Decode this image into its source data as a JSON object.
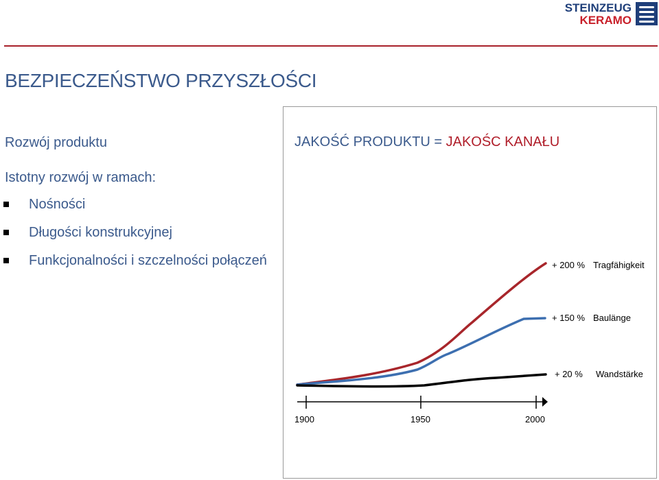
{
  "brand": {
    "line1": "STEINZEUG",
    "line2": "KERAMO"
  },
  "colors": {
    "title_blue": "#3b5a8c",
    "brand_red": "#b01e2a",
    "curve_red": "#a8262b",
    "curve_blue": "#3d6fb0",
    "curve_black": "#000000"
  },
  "page": {
    "title": "BEZPIECZEŃSTWO PRZYSZŁOŚCI",
    "subtitle": "Rozwój produktu",
    "intro": "Istotny rozwój w ramach:",
    "bullets": [
      "Nośności",
      "Długości konstrukcyjnej",
      "Funkcjonalności i szczelności połączeń"
    ]
  },
  "panel": {
    "title_left": "JAKOŚĆ PRODUKTU",
    "title_eq": " = ",
    "title_right": "JAKOŚC KANAŁU"
  },
  "chart_data": {
    "type": "line",
    "x_ticks": [
      "1900",
      "1950",
      "2000"
    ],
    "series": [
      {
        "label_pct": "+ 200 %",
        "label_name": "Tragfähigkeit"
      },
      {
        "label_pct": "+ 150 %",
        "label_name": "Baulänge"
      },
      {
        "label_pct": "+ 20 %",
        "label_name": "Wandstärke"
      }
    ]
  }
}
